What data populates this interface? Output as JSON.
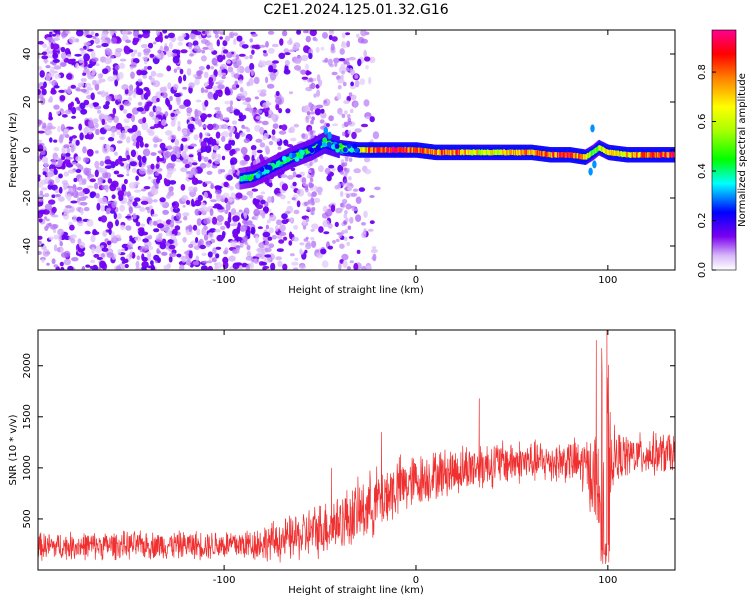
{
  "page_title": "C2E1.2024.125.01.32.G16",
  "chart_data": [
    {
      "type": "heatmap",
      "title": "C2E1.2024.125.01.32.G16",
      "xlabel": "Height of straight line (km)",
      "ylabel": "Frequency (Hz)",
      "xlim": [
        -197,
        135
      ],
      "ylim": [
        -50,
        50
      ],
      "x_ticks": [
        -100,
        0,
        100
      ],
      "y_ticks": [
        -40,
        -20,
        0,
        20,
        40
      ],
      "colorbar": {
        "label": "Normalized spectral amplitude",
        "range": [
          0,
          0.97
        ],
        "ticks": [
          0,
          0.2,
          0.4,
          0.6,
          0.8
        ],
        "colors": [
          "#ffffff",
          "#d8b8f8",
          "#7a00f0",
          "#0000ff",
          "#00ffff",
          "#00ff00",
          "#ffff00",
          "#ff8000",
          "#ff0000",
          "#ff0090"
        ]
      },
      "ridge": {
        "x": [
          -92,
          -85,
          -75,
          -65,
          -55,
          -48,
          -40,
          -30,
          -20,
          -10,
          0,
          10,
          20,
          30,
          40,
          50,
          60,
          70,
          80,
          88,
          92,
          95,
          100,
          110,
          120,
          135
        ],
        "frequency": [
          -12,
          -11,
          -7,
          -3,
          0,
          3,
          1,
          0,
          0,
          0,
          0,
          -1,
          -1,
          -1,
          -1,
          -1,
          -1,
          -2,
          -2,
          -3,
          -1,
          1,
          -1,
          -2,
          -2,
          -2
        ],
        "peak_amplitude": [
          0.4,
          0.45,
          0.45,
          0.5,
          0.5,
          0.55,
          0.6,
          0.7,
          0.95,
          0.9,
          0.85,
          0.8,
          0.85,
          0.7,
          0.7,
          0.75,
          0.8,
          0.85,
          0.9,
          0.7,
          0.5,
          0.6,
          0.7,
          0.75,
          0.85,
          0.95
        ]
      },
      "noise_region_x": [
        -197,
        -30
      ]
    },
    {
      "type": "line",
      "xlabel": "Height of straight line (km)",
      "ylabel": "SNR (10 * v/v)",
      "xlim": [
        -197,
        135
      ],
      "ylim": [
        0,
        2350
      ],
      "x_ticks": [
        -100,
        0,
        100
      ],
      "y_ticks": [
        500,
        1000,
        1500,
        2000
      ],
      "line_color": "#f03030",
      "envelope": {
        "x": [
          -197,
          -160,
          -120,
          -90,
          -80,
          -70,
          -60,
          -50,
          -40,
          -30,
          -20,
          -10,
          0,
          10,
          20,
          30,
          40,
          50,
          60,
          70,
          80,
          90,
          95,
          98,
          100,
          102,
          105,
          110,
          120,
          135
        ],
        "mean": [
          230,
          240,
          245,
          250,
          265,
          290,
          330,
          400,
          470,
          560,
          680,
          800,
          870,
          930,
          970,
          1010,
          1040,
          1060,
          1060,
          1060,
          1070,
          1000,
          800,
          400,
          900,
          1100,
          1100,
          1120,
          1130,
          1140
        ],
        "half_spread": [
          130,
          130,
          130,
          150,
          170,
          200,
          230,
          260,
          280,
          300,
          320,
          300,
          250,
          230,
          230,
          230,
          220,
          210,
          200,
          200,
          200,
          300,
          600,
          600,
          800,
          300,
          250,
          200,
          200,
          200
        ]
      },
      "spikes": [
        {
          "x": 94,
          "y": 2250
        },
        {
          "x": 97,
          "y": 1900
        },
        {
          "x": 99.5,
          "y": 2350
        },
        {
          "x": -44,
          "y": 1000
        },
        {
          "x": -18,
          "y": 1350
        },
        {
          "x": 33,
          "y": 1680
        }
      ]
    }
  ]
}
